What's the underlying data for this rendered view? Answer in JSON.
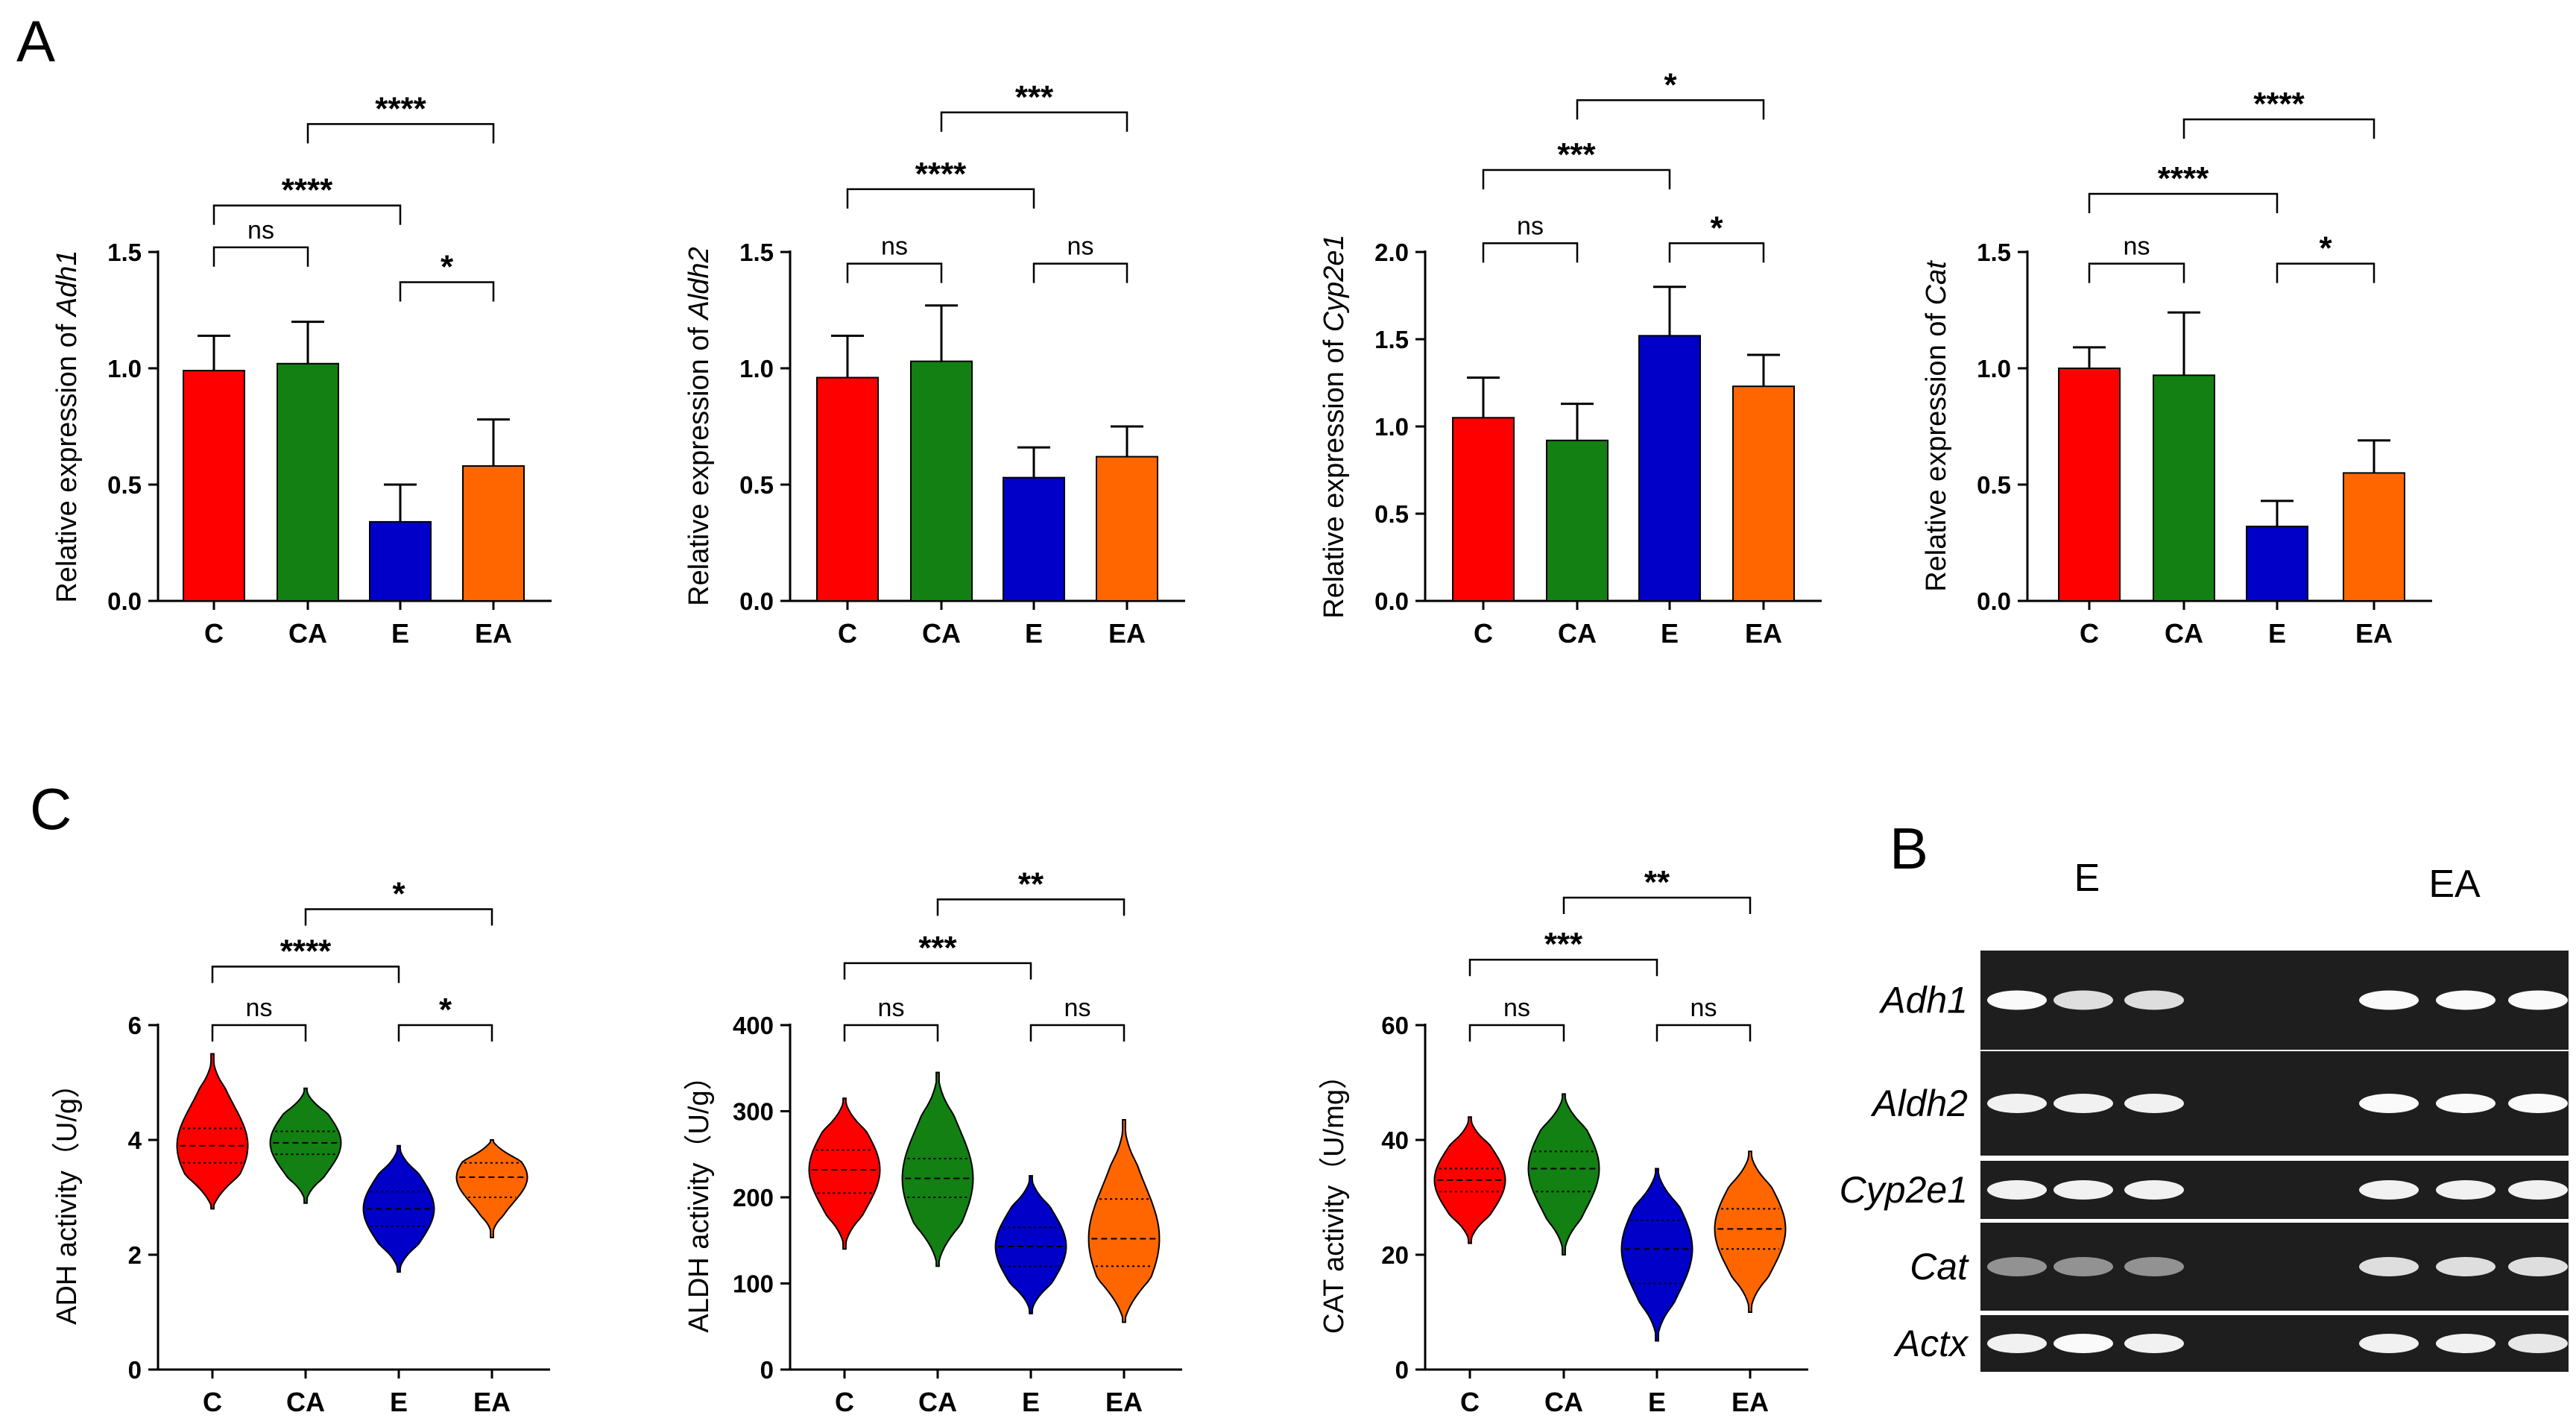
{
  "panel_labels": {
    "a": "A",
    "b": "B",
    "c": "C"
  },
  "chart_data": [
    {
      "type": "bar",
      "panel": "A",
      "ylabel_prefix": "Relative expression of ",
      "ylabel_gene": "Adh1",
      "categories": [
        "C",
        "CA",
        "E",
        "EA"
      ],
      "values": [
        0.99,
        1.02,
        0.34,
        0.58
      ],
      "errors": [
        0.15,
        0.18,
        0.16,
        0.2
      ],
      "colors": [
        "#ff0000",
        "#128012",
        "#0000c8",
        "#ff6600"
      ],
      "ylim": [
        0,
        1.5
      ],
      "yticks": [
        "0.0",
        "0.5",
        "1.0",
        "1.5"
      ],
      "yticks_values": [
        0,
        0.5,
        1.0,
        1.5
      ],
      "comparisons": [
        {
          "a": 0,
          "b": 1,
          "label": "ns",
          "level": 1.52
        },
        {
          "a": 2,
          "b": 3,
          "label": "*",
          "level": 1.37
        },
        {
          "a": 0,
          "b": 2,
          "label": "****",
          "level": 1.7
        },
        {
          "a": 1,
          "b": 3,
          "label": "****",
          "level": 2.05
        }
      ]
    },
    {
      "type": "bar",
      "panel": "A",
      "ylabel_prefix": "Relative expression of ",
      "ylabel_gene": "Aldh2",
      "categories": [
        "C",
        "CA",
        "E",
        "EA"
      ],
      "values": [
        0.96,
        1.03,
        0.53,
        0.62
      ],
      "errors": [
        0.18,
        0.24,
        0.13,
        0.13
      ],
      "colors": [
        "#ff0000",
        "#128012",
        "#0000c8",
        "#ff6600"
      ],
      "ylim": [
        0,
        1.5
      ],
      "yticks": [
        "0.0",
        "0.5",
        "1.0",
        "1.5"
      ],
      "yticks_values": [
        0,
        0.5,
        1.0,
        1.5
      ],
      "comparisons": [
        {
          "a": 0,
          "b": 1,
          "label": "ns",
          "level": 1.45
        },
        {
          "a": 2,
          "b": 3,
          "label": "ns",
          "level": 1.45
        },
        {
          "a": 0,
          "b": 2,
          "label": "****",
          "level": 1.77
        },
        {
          "a": 1,
          "b": 3,
          "label": "***",
          "level": 2.1
        }
      ]
    },
    {
      "type": "bar",
      "panel": "A",
      "ylabel_prefix": "Relative expression of ",
      "ylabel_gene": "Cyp2e1",
      "categories": [
        "C",
        "CA",
        "E",
        "EA"
      ],
      "values": [
        1.05,
        0.92,
        1.52,
        1.23
      ],
      "errors": [
        0.23,
        0.21,
        0.28,
        0.18
      ],
      "colors": [
        "#ff0000",
        "#128012",
        "#0000c8",
        "#ff6600"
      ],
      "ylim": [
        0,
        2.0
      ],
      "yticks": [
        "0.0",
        "0.5",
        "1.0",
        "1.5",
        "2.0"
      ],
      "yticks_values": [
        0,
        0.5,
        1.0,
        1.5,
        2.0
      ],
      "comparisons": [
        {
          "a": 0,
          "b": 1,
          "label": "ns",
          "level": 2.05
        },
        {
          "a": 2,
          "b": 3,
          "label": "*",
          "level": 2.05
        },
        {
          "a": 0,
          "b": 2,
          "label": "***",
          "level": 2.47
        },
        {
          "a": 1,
          "b": 3,
          "label": "*",
          "level": 2.87
        }
      ]
    },
    {
      "type": "bar",
      "panel": "A",
      "ylabel_prefix": "Relative expression of ",
      "ylabel_gene": "Cat",
      "categories": [
        "C",
        "CA",
        "E",
        "EA"
      ],
      "values": [
        1.0,
        0.97,
        0.32,
        0.55
      ],
      "errors": [
        0.09,
        0.27,
        0.11,
        0.14
      ],
      "colors": [
        "#ff0000",
        "#128012",
        "#0000c8",
        "#ff6600"
      ],
      "ylim": [
        0,
        1.5
      ],
      "yticks": [
        "0.0",
        "0.5",
        "1.0",
        "1.5"
      ],
      "yticks_values": [
        0,
        0.5,
        1.0,
        1.5
      ],
      "comparisons": [
        {
          "a": 0,
          "b": 1,
          "label": "ns",
          "level": 1.45
        },
        {
          "a": 2,
          "b": 3,
          "label": "*",
          "level": 1.45
        },
        {
          "a": 0,
          "b": 2,
          "label": "****",
          "level": 1.75
        },
        {
          "a": 1,
          "b": 3,
          "label": "****",
          "level": 2.07
        }
      ]
    },
    {
      "type": "violin",
      "panel": "C",
      "ylabel": "ADH activity（U/g）",
      "categories": [
        "C",
        "CA",
        "E",
        "EA"
      ],
      "medians": [
        3.9,
        3.95,
        2.8,
        3.35
      ],
      "quartiles": [
        [
          3.6,
          4.2
        ],
        [
          3.75,
          4.15
        ],
        [
          2.5,
          3.1
        ],
        [
          3.0,
          3.6
        ]
      ],
      "ranges": [
        [
          2.8,
          5.5
        ],
        [
          2.9,
          4.9
        ],
        [
          1.7,
          3.9
        ],
        [
          2.3,
          4.0
        ]
      ],
      "colors": [
        "#ff0000",
        "#128012",
        "#0000c8",
        "#ff6600"
      ],
      "ylim": [
        0,
        6
      ],
      "yticks": [
        "0",
        "2",
        "4",
        "6"
      ],
      "yticks_values": [
        0,
        2,
        4,
        6
      ],
      "comparisons": [
        {
          "a": 0,
          "b": 1,
          "label": "ns",
          "level": 6.0
        },
        {
          "a": 2,
          "b": 3,
          "label": "*",
          "level": 6.0
        },
        {
          "a": 0,
          "b": 2,
          "label": "****",
          "level": 7.02
        },
        {
          "a": 1,
          "b": 3,
          "label": "*",
          "level": 8.02
        }
      ]
    },
    {
      "type": "violin",
      "panel": "C",
      "ylabel": "ALDH activity（U/g）",
      "categories": [
        "C",
        "CA",
        "E",
        "EA"
      ],
      "medians": [
        232,
        222,
        143,
        152
      ],
      "quartiles": [
        [
          205,
          255
        ],
        [
          200,
          245
        ],
        [
          120,
          165
        ],
        [
          120,
          198
        ]
      ],
      "ranges": [
        [
          140,
          315
        ],
        [
          120,
          345
        ],
        [
          65,
          225
        ],
        [
          55,
          290
        ]
      ],
      "colors": [
        "#ff0000",
        "#128012",
        "#0000c8",
        "#ff6600"
      ],
      "ylim": [
        0,
        400
      ],
      "yticks": [
        "0",
        "100",
        "200",
        "300",
        "400"
      ],
      "yticks_values": [
        0,
        100,
        200,
        300,
        400
      ],
      "comparisons": [
        {
          "a": 0,
          "b": 1,
          "label": "ns",
          "level": 400
        },
        {
          "a": 2,
          "b": 3,
          "label": "ns",
          "level": 400
        },
        {
          "a": 0,
          "b": 2,
          "label": "***",
          "level": 472
        },
        {
          "a": 1,
          "b": 3,
          "label": "**",
          "level": 546
        }
      ]
    },
    {
      "type": "violin",
      "panel": "C",
      "ylabel": "CAT activity（U/mg）",
      "categories": [
        "C",
        "CA",
        "E",
        "EA"
      ],
      "medians": [
        33,
        35,
        21,
        24.5
      ],
      "quartiles": [
        [
          31,
          35
        ],
        [
          31,
          38
        ],
        [
          15,
          26
        ],
        [
          21,
          28
        ]
      ],
      "ranges": [
        [
          22,
          44
        ],
        [
          20,
          48
        ],
        [
          5,
          35
        ],
        [
          10,
          38
        ]
      ],
      "colors": [
        "#ff0000",
        "#128012",
        "#0000c8",
        "#ff6600"
      ],
      "ylim": [
        0,
        60
      ],
      "yticks": [
        "0",
        "20",
        "40",
        "60"
      ],
      "yticks_values": [
        0,
        20,
        40,
        60
      ],
      "comparisons": [
        {
          "a": 0,
          "b": 1,
          "label": "ns",
          "level": 60
        },
        {
          "a": 2,
          "b": 3,
          "label": "ns",
          "level": 60
        },
        {
          "a": 0,
          "b": 2,
          "label": "***",
          "level": 71.4
        },
        {
          "a": 1,
          "b": 3,
          "label": "**",
          "level": 82.2
        }
      ]
    }
  ],
  "gel": {
    "column_groups": [
      "E",
      "EA"
    ],
    "rows": [
      {
        "label": "Adh1",
        "bands": [
          1,
          0.85,
          0.85,
          0,
          1,
          1,
          1
        ]
      },
      {
        "label": "Aldh2",
        "bands": [
          0.95,
          0.95,
          0.95,
          0,
          1,
          1,
          1
        ]
      },
      {
        "label": "Cyp2e1",
        "bands": [
          0.95,
          0.95,
          0.95,
          0,
          0.95,
          0.95,
          0.95
        ]
      },
      {
        "label": "Cat",
        "bands": [
          0.45,
          0.45,
          0.45,
          0,
          0.85,
          0.85,
          0.85
        ]
      },
      {
        "label": "Actx",
        "bands": [
          0.95,
          1,
          0.95,
          0,
          0.95,
          0.95,
          0.9
        ]
      }
    ]
  }
}
